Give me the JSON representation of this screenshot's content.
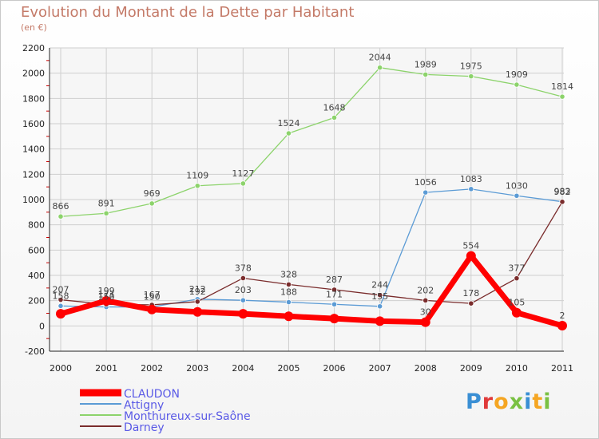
{
  "header": {
    "title": "Evolution du Montant de la Dette par Habitant",
    "subtitle": "(en €)"
  },
  "logo": {
    "text": "Proxiti",
    "colors": [
      "#3a8fd4",
      "#e03a3a",
      "#f5a623",
      "#7ac143",
      "#3a8fd4",
      "#f5a623",
      "#7ac143"
    ]
  },
  "chart_data": {
    "type": "line",
    "title": "Evolution du Montant de la Dette par Habitant",
    "subtitle": "(en €)",
    "x": [
      "2000",
      "2001",
      "2002",
      "2003",
      "2004",
      "2005",
      "2006",
      "2007",
      "2008",
      "2009",
      "2010",
      "2011"
    ],
    "ylim": [
      -200,
      2200
    ],
    "yticks": [
      "-200",
      "0",
      "200",
      "400",
      "600",
      "800",
      "1000",
      "1200",
      "1400",
      "1600",
      "1800",
      "2000",
      "2200"
    ],
    "grid": true,
    "legend": "bottom-left",
    "series": [
      {
        "name": "CLAUDON",
        "color": "#ff0000",
        "values": [
          96,
          199,
          130,
          111,
          96,
          76,
          58,
          38,
          30,
          554,
          105,
          2
        ],
        "labels": [
          "",
          "199",
          "",
          "",
          "",
          "",
          "",
          "",
          "30",
          "554",
          "105",
          "2"
        ]
      },
      {
        "name": "Attigny",
        "color": "#5b9bd5",
        "values": [
          158,
          150,
          150,
          212,
          203,
          188,
          171,
          155,
          1056,
          1083,
          1030,
          983
        ],
        "labels": [
          "158",
          "150",
          "150",
          "212",
          "203",
          "188",
          "171",
          "155",
          "1056",
          "1083",
          "1030",
          "983"
        ]
      },
      {
        "name": "Monthureux-sur-Saône",
        "color": "#8cd36b",
        "values": [
          866,
          891,
          969,
          1109,
          1127,
          1524,
          1648,
          2044,
          1989,
          1975,
          1909,
          1814
        ],
        "labels": [
          "866",
          "891",
          "969",
          "1109",
          "1127",
          "1524",
          "1648",
          "2044",
          "1989",
          "1975",
          "1909",
          "1814"
        ]
      },
      {
        "name": "Darney",
        "color": "#7a2c2c",
        "values": [
          207,
          171,
          167,
          192,
          378,
          328,
          287,
          244,
          202,
          178,
          377,
          982
        ],
        "labels": [
          "207",
          "171",
          "167",
          "192",
          "378",
          "328",
          "287",
          "244",
          "202",
          "178",
          "377",
          "982"
        ]
      }
    ]
  }
}
